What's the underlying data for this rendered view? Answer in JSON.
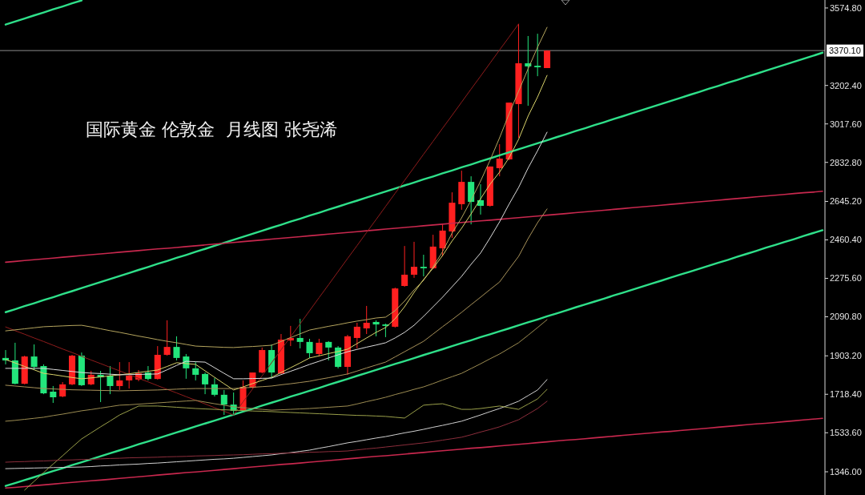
{
  "chart_data": {
    "type": "candlestick",
    "title": "国际黄金 伦敦金  月线图 张尧浠",
    "categories": [
      null,
      null,
      null,
      null,
      null,
      null,
      null,
      null,
      null,
      null,
      null,
      null,
      null,
      null,
      null,
      null,
      null,
      null,
      null,
      null,
      null,
      null,
      null,
      null,
      null,
      null,
      null,
      null,
      null,
      null,
      null,
      null,
      null,
      null,
      null,
      null,
      null,
      null,
      null,
      null,
      null,
      null,
      null,
      null,
      null,
      null,
      null,
      null,
      null,
      null,
      null,
      null,
      null,
      null,
      null,
      null,
      null,
      null,
      null,
      null,
      null,
      null,
      null,
      null,
      null,
      null,
      null,
      null,
      null,
      null,
      null,
      null,
      null,
      null,
      null,
      null,
      null,
      null,
      null,
      null,
      null,
      null,
      null,
      null,
      null,
      null,
      null
    ],
    "ohlc": [
      [
        1893,
        1931,
        1862,
        1881
      ],
      [
        1881,
        1966,
        1766,
        1769
      ],
      [
        1769,
        1904,
        1766,
        1900
      ],
      [
        1900,
        1958,
        1835,
        1850
      ],
      [
        1854,
        1862,
        1719,
        1723
      ],
      [
        1731,
        1758,
        1677,
        1704
      ],
      [
        1708,
        1777,
        1704,
        1766
      ],
      [
        1766,
        1908,
        1762,
        1904
      ],
      [
        1904,
        1919,
        1758,
        1762
      ],
      [
        1766,
        1831,
        1762,
        1812
      ],
      [
        1812,
        1831,
        1681,
        1800
      ],
      [
        1808,
        1854,
        1719,
        1758
      ],
      [
        1758,
        1873,
        1739,
        1785
      ],
      [
        1785,
        1873,
        1746,
        1808
      ],
      [
        1789,
        1835,
        1781,
        1819
      ],
      [
        1823,
        1854,
        1785,
        1792
      ],
      [
        1792,
        1950,
        1789,
        1908
      ],
      [
        1908,
        2074,
        1904,
        1946
      ],
      [
        1946,
        1997,
        1881,
        1893
      ],
      [
        1900,
        1912,
        1793,
        1843
      ],
      [
        1843,
        1873,
        1785,
        1812
      ],
      [
        1816,
        1823,
        1719,
        1766
      ],
      [
        1766,
        1796,
        1708,
        1716
      ],
      [
        1716,
        1739,
        1619,
        1669
      ],
      [
        1669,
        1727,
        1619,
        1639
      ],
      [
        1639,
        1785,
        1635,
        1754
      ],
      [
        1750,
        1823,
        1746,
        1823
      ],
      [
        1823,
        1943,
        1819,
        1931
      ],
      [
        1931,
        1958,
        1796,
        1823
      ],
      [
        1819,
        2008,
        1815,
        1981
      ],
      [
        1977,
        2047,
        1950,
        1989
      ],
      [
        1989,
        2081,
        1939,
        1970
      ],
      [
        1970,
        1985,
        1893,
        1916
      ],
      [
        1912,
        1985,
        1900,
        1966
      ],
      [
        1970,
        1974,
        1881,
        1943
      ],
      [
        1943,
        1950,
        1843,
        1850
      ],
      [
        1850,
        2004,
        1812,
        1997
      ],
      [
        1989,
        2062,
        1939,
        2043
      ],
      [
        2035,
        2143,
        2008,
        2062
      ],
      [
        2066,
        2074,
        1997,
        2054
      ],
      [
        2054,
        2058,
        1993,
        2047
      ],
      [
        2043,
        2231,
        2039,
        2227
      ],
      [
        2239,
        2431,
        2235,
        2293
      ],
      [
        2293,
        2451,
        2278,
        2331
      ],
      [
        2331,
        2389,
        2285,
        2324
      ],
      [
        2324,
        2485,
        2320,
        2428
      ],
      [
        2420,
        2535,
        2381,
        2505
      ],
      [
        2501,
        2689,
        2470,
        2639
      ],
      [
        2632,
        2793,
        2605,
        2739
      ],
      [
        2739,
        2766,
        2535,
        2643
      ],
      [
        2651,
        2728,
        2582,
        2624
      ],
      [
        2624,
        2813,
        2620,
        2813
      ],
      [
        2805,
        2920,
        2766,
        2851
      ],
      [
        2847,
        3120,
        2843,
        3120
      ],
      [
        3113,
        3498,
        2951,
        3309
      ],
      [
        3309,
        3440,
        3105,
        3294
      ],
      [
        3297,
        3451,
        3247,
        3290
      ],
      [
        3286,
        3371,
        3286,
        3370.1
      ],
      null,
      null,
      null,
      null,
      null,
      null,
      null,
      null,
      null,
      null,
      null,
      null,
      null,
      null,
      null,
      null,
      null,
      null,
      null,
      null,
      null,
      null,
      null,
      null,
      null,
      null,
      null,
      null,
      null
    ],
    "colors": [
      "#23e67c",
      "#23e67c",
      "#ff2020",
      "#23e67c",
      "#23e67c",
      "#23e67c",
      "#ff2020",
      "#ff2020",
      "#23e67c",
      "#ff2020",
      "#23e67c",
      "#23e67c",
      "#ff2020",
      "#ff2020",
      "#ff2020",
      "#23e67c",
      "#ff2020",
      "#ff2020",
      "#23e67c",
      "#23e67c",
      "#23e67c",
      "#23e67c",
      "#23e67c",
      "#23e67c",
      "#23e67c",
      "#ff2020",
      "#ff2020",
      "#ff2020",
      "#23e67c",
      "#ff2020",
      "#ff2020",
      "#23e67c",
      "#23e67c",
      "#ff2020",
      "#23e67c",
      "#23e67c",
      "#ff2020",
      "#ff2020",
      "#ff2020",
      "#23e67c",
      "#23e67c",
      "#ff2020",
      "#ff2020",
      "#ff2020",
      "#23e67c",
      "#ff2020",
      "#ff2020",
      "#ff2020",
      "#ff2020",
      "#23e67c",
      "#23e67c",
      "#ff2020",
      "#ff2020",
      "#ff2020",
      "#ff2020",
      "#23e67c",
      "#23e67c",
      "#ff2020",
      null,
      null,
      null,
      null,
      null,
      null,
      null,
      null,
      null,
      null,
      null,
      null,
      null,
      null,
      null,
      null,
      null,
      null,
      null,
      null,
      null,
      null,
      null,
      null,
      null,
      null,
      null,
      null,
      null
    ],
    "series": [
      {
        "type": "line",
        "color": "#2fe08a",
        "values": [
          3495,
          3510,
          3524,
          3539,
          3553,
          3568,
          3582,
          3597,
          3611,
          null,
          null,
          null,
          null,
          null,
          null,
          null,
          null,
          null,
          null,
          null,
          null,
          null,
          null,
          null,
          null,
          null,
          null,
          null,
          null,
          null,
          null,
          null,
          null,
          null,
          null,
          null,
          null,
          null,
          null,
          null,
          null,
          null,
          null,
          null,
          null,
          null,
          null,
          null,
          null,
          null,
          null,
          null,
          null,
          null,
          null,
          null,
          null,
          null,
          null,
          null,
          null,
          null,
          null,
          null,
          null,
          null,
          null,
          null,
          null,
          null,
          null,
          null,
          null,
          null,
          null,
          null,
          null,
          null,
          null,
          null,
          null,
          null,
          null,
          null,
          null,
          null,
          null
        ]
      },
      {
        "type": "line",
        "color": "#2fe08a",
        "values": [
          2113,
          2127,
          2142,
          2156,
          2171,
          2185,
          2200,
          2214,
          2229,
          2243,
          2258,
          2272,
          2287,
          2301,
          2316,
          2330,
          2345,
          2359,
          2374,
          2388,
          2403,
          2417,
          2432,
          2446,
          2461,
          2475,
          2490,
          2504,
          2519,
          2533,
          2548,
          2562,
          2577,
          2591,
          2606,
          2620,
          2635,
          2649,
          2664,
          2678,
          2693,
          2707,
          2722,
          2736,
          2751,
          2765,
          2780,
          2794,
          2809,
          2823,
          2838,
          2852,
          2867,
          2881,
          2896,
          2910,
          2925,
          2939,
          2954,
          2968,
          2983,
          2997,
          3012,
          3026,
          3041,
          3055,
          3070,
          3084,
          3099,
          3113,
          3128,
          3142,
          3157,
          3171,
          3186,
          3200,
          3215,
          3229,
          3244,
          3258,
          3273,
          3287,
          3302,
          3316,
          3331,
          3345,
          3360
        ]
      },
      {
        "type": "line",
        "color": "#2fe08a",
        "values": [
          1278,
          1292,
          1306,
          1320,
          1335,
          1349,
          1363,
          1378,
          1392,
          1406,
          1421,
          1435,
          1449,
          1463,
          1478,
          1492,
          1506,
          1521,
          1535,
          1549,
          1564,
          1578,
          1592,
          1606,
          1621,
          1635,
          1649,
          1664,
          1678,
          1692,
          1707,
          1721,
          1735,
          1749,
          1764,
          1778,
          1792,
          1807,
          1821,
          1835,
          1850,
          1864,
          1878,
          1892,
          1907,
          1921,
          1935,
          1950,
          1964,
          1978,
          1993,
          2007,
          2021,
          2035,
          2050,
          2064,
          2078,
          2093,
          2107,
          2121,
          2136,
          2150,
          2164,
          2178,
          2193,
          2207,
          2221,
          2236,
          2250,
          2264,
          2279,
          2293,
          2307,
          2321,
          2336,
          2350,
          2364,
          2379,
          2393,
          2407,
          2422,
          2436,
          2450,
          2464,
          2479,
          2493,
          2507
        ]
      },
      {
        "type": "line",
        "color": "#c8284e",
        "values": [
          2353,
          2357,
          2361,
          2365,
          2369,
          2373,
          2377,
          2381,
          2385,
          2389,
          2393,
          2397,
          2401,
          2405,
          2409,
          2413,
          2417,
          2420,
          2424,
          2428,
          2432,
          2436,
          2440,
          2444,
          2448,
          2452,
          2456,
          2460,
          2464,
          2468,
          2472,
          2476,
          2480,
          2484,
          2488,
          2492,
          2496,
          2500,
          2504,
          2508,
          2512,
          2516,
          2520,
          2524,
          2528,
          2532,
          2536,
          2540,
          2544,
          2548,
          2552,
          2555,
          2559,
          2563,
          2567,
          2571,
          2575,
          2579,
          2583,
          2587,
          2591,
          2595,
          2599,
          2603,
          2607,
          2611,
          2615,
          2619,
          2623,
          2627,
          2631,
          2635,
          2639,
          2643,
          2647,
          2651,
          2655,
          2659,
          2663,
          2667,
          2671,
          2675,
          2679,
          2683,
          2687,
          2690,
          2694
        ]
      },
      {
        "type": "line",
        "color": "#c8284e",
        "values": [
          1268,
          1271,
          1275,
          1279,
          1283,
          1287,
          1291,
          1295,
          1299,
          1303,
          1306,
          1310,
          1314,
          1318,
          1322,
          1326,
          1330,
          1334,
          1338,
          1342,
          1345,
          1349,
          1353,
          1357,
          1361,
          1365,
          1369,
          1373,
          1377,
          1381,
          1384,
          1388,
          1392,
          1396,
          1400,
          1404,
          1408,
          1412,
          1416,
          1420,
          1423,
          1427,
          1431,
          1435,
          1439,
          1443,
          1447,
          1451,
          1455,
          1459,
          1462,
          1466,
          1470,
          1474,
          1478,
          1482,
          1486,
          1490,
          1494,
          1498,
          1501,
          1505,
          1509,
          1513,
          1517,
          1521,
          1525,
          1529,
          1533,
          1537,
          1540,
          1544,
          1548,
          1552,
          1556,
          1560,
          1564,
          1568,
          1572,
          1576,
          1579,
          1583,
          1587,
          1591,
          1595,
          1599,
          1603
        ]
      },
      {
        "type": "line",
        "color": "#8e1c1c",
        "values": [
          2042,
          2024,
          2007,
          1989,
          1972,
          1954,
          1936,
          1919,
          1901,
          1883,
          1866,
          1848,
          1831,
          1813,
          1795,
          1778,
          1760,
          1742,
          1725,
          1707,
          1690,
          1672,
          1654,
          1637,
          1619,
          1682,
          1744,
          1807,
          1870,
          1932,
          1995,
          2057,
          2120,
          2183,
          2245,
          2308,
          2371,
          2433,
          2496,
          2558,
          2621,
          2684,
          2746,
          2809,
          2872,
          2934,
          2997,
          3059,
          3122,
          3185,
          3247,
          3310,
          3373,
          3435,
          3498,
          null,
          null,
          null,
          null,
          null,
          null,
          null,
          null,
          null,
          null,
          null,
          null,
          null,
          null,
          null,
          null,
          null,
          null,
          null,
          null,
          null,
          null,
          null,
          null,
          null,
          null,
          null,
          null,
          null,
          null,
          null,
          null
        ]
      },
      {
        "type": "line",
        "color": "#b5a55e",
        "values": [
          2023,
          2028,
          2033,
          2038,
          2043,
          2045,
          2047,
          2049,
          2050,
          2042,
          2033,
          2024,
          2016,
          2007,
          1998,
          1990,
          1981,
          1973,
          1966,
          1958,
          1950,
          1948,
          1946,
          1944,
          1943,
          1946,
          1948,
          1951,
          1954,
          1972,
          1991,
          2009,
          2027,
          2036,
          2045,
          2053,
          2062,
          2070,
          2077,
          2085,
          2089,
          2120,
          2166,
          2220,
          2266,
          2331,
          2404,
          2493,
          2566,
          2651,
          2743,
          2843,
          2951,
          3066,
          3174,
          3282,
          3386,
          3482,
          null,
          null,
          null,
          null,
          null,
          null,
          null,
          null,
          null,
          null,
          null,
          null,
          null,
          null,
          null,
          null,
          null,
          null,
          null,
          null,
          null,
          null,
          null,
          null,
          null,
          null,
          null,
          null,
          null
        ]
      },
      {
        "type": "line",
        "color": "#d9d36b",
        "values": [
          1885,
          1869,
          1852,
          1836,
          1819,
          1813,
          1806,
          1799,
          1793,
          1797,
          1802,
          1807,
          1812,
          1817,
          1823,
          1829,
          1835,
          1852,
          1870,
          1866,
          1862,
          1831,
          1800,
          1769,
          1739,
          1754,
          1770,
          1785,
          1800,
          1823,
          1846,
          1869,
          1893,
          1903,
          1914,
          1924,
          1935,
          1962,
          1989,
          2016,
          2039,
          2081,
          2139,
          2208,
          2270,
          2324,
          2385,
          2455,
          2516,
          2585,
          2658,
          2728,
          2786,
          2855,
          2943,
          3055,
          3147,
          3251,
          null,
          null,
          null,
          null,
          null,
          null,
          null,
          null,
          null,
          null,
          null,
          null,
          null,
          null,
          null,
          null,
          null,
          null,
          null,
          null,
          null,
          null,
          null,
          null,
          null,
          null,
          null,
          null,
          null
        ]
      },
      {
        "type": "line",
        "color": "#dcdcdc",
        "values": [
          1843,
          1843,
          1843,
          1843,
          1843,
          1838,
          1833,
          1828,
          1823,
          1820,
          1818,
          1815,
          1812,
          1813,
          1814,
          1815,
          1816,
          1836,
          1857,
          1877,
          1875,
          1873,
          1846,
          1819,
          1793,
          1793,
          1794,
          1795,
          1796,
          1813,
          1829,
          1845,
          1862,
          1877,
          1893,
          1908,
          1923,
          1934,
          1945,
          1955,
          1966,
          1989,
          2016,
          2050,
          2093,
          2139,
          2185,
          2235,
          2285,
          2343,
          2397,
          2470,
          2547,
          2632,
          2712,
          2805,
          2889,
          2978,
          null,
          null,
          null,
          null,
          null,
          null,
          null,
          null,
          null,
          null,
          null,
          null,
          null,
          null,
          null,
          null,
          null,
          null,
          null,
          null,
          null,
          null,
          null,
          null,
          null,
          null,
          null,
          null,
          null
        ]
      },
      {
        "type": "line",
        "color": "#a8925a",
        "values": [
          1762,
          1758,
          1754,
          1750,
          1746,
          1744,
          1742,
          1740,
          1739,
          1738,
          1737,
          1736,
          1735,
          1736,
          1737,
          1738,
          1739,
          1741,
          1743,
          1745,
          1746,
          1746,
          1746,
          1746,
          1746,
          1749,
          1752,
          1755,
          1758,
          1764,
          1769,
          1775,
          1781,
          1790,
          1798,
          1807,
          1816,
          1830,
          1845,
          1859,
          1873,
          1898,
          1923,
          1948,
          1973,
          2008,
          2043,
          2077,
          2112,
          2149,
          2185,
          2222,
          2258,
          2320,
          2381,
          2466,
          2543,
          2609,
          null,
          null,
          null,
          null,
          null,
          null,
          null,
          null,
          null,
          null,
          null,
          null,
          null,
          null,
          null,
          null,
          null,
          null,
          null,
          null,
          null,
          null,
          null,
          null,
          null,
          null,
          null,
          null,
          null
        ]
      },
      {
        "type": "line",
        "color": "#9c8c52",
        "values": [
          1589,
          1593,
          1598,
          1603,
          1608,
          1616,
          1623,
          1631,
          1639,
          1645,
          1652,
          1659,
          1666,
          1668,
          1671,
          1674,
          1677,
          1680,
          1683,
          1686,
          1689,
          1681,
          1673,
          1666,
          1658,
          1654,
          1650,
          1646,
          1642,
          1644,
          1646,
          1648,
          1650,
          1653,
          1656,
          1659,
          1662,
          1672,
          1683,
          1693,
          1704,
          1717,
          1729,
          1742,
          1754,
          1770,
          1787,
          1803,
          1819,
          1842,
          1865,
          1889,
          1912,
          1939,
          1966,
          2002,
          2039,
          2077,
          null,
          null,
          null,
          null,
          null,
          null,
          null,
          null,
          null,
          null,
          null,
          null,
          null,
          null,
          null,
          null,
          null,
          null,
          null,
          null,
          null,
          null,
          null,
          null,
          null,
          null,
          null,
          null,
          null
        ]
      },
      {
        "type": "line",
        "color": "#d0d0d0",
        "values": [
          1361,
          1362,
          1363,
          1364,
          1365,
          1366,
          1367,
          1368,
          1369,
          1371,
          1374,
          1376,
          1379,
          1381,
          1383,
          1386,
          1388,
          1391,
          1394,
          1397,
          1400,
          1403,
          1406,
          1408,
          1411,
          1415,
          1419,
          1423,
          1427,
          1433,
          1438,
          1444,
          1450,
          1459,
          1467,
          1476,
          1485,
          1492,
          1500,
          1508,
          1515,
          1524,
          1533,
          1541,
          1550,
          1560,
          1569,
          1579,
          1589,
          1604,
          1619,
          1635,
          1650,
          1667,
          1685,
          1712,
          1739,
          1789,
          null,
          null,
          null,
          null,
          null,
          null,
          null,
          null,
          null,
          null,
          null,
          null,
          null,
          null,
          null,
          null,
          null,
          null,
          null,
          null,
          null,
          null,
          null,
          null,
          null,
          null,
          null,
          null,
          null
        ]
      },
      {
        "type": "line",
        "color": "#9aa04a",
        "values": [
          null,
          null,
          1258,
          1300,
          1342,
          1383,
          1423,
          1464,
          1504,
          1533,
          1562,
          1590,
          1619,
          1640,
          1662,
          1662,
          1662,
          1659,
          1656,
          1653,
          1650,
          1648,
          1646,
          1644,
          1642,
          1640,
          1638,
          1637,
          1635,
          1633,
          1631,
          1629,
          1627,
          1625,
          1623,
          1621,
          1619,
          1617,
          1616,
          1614,
          1612,
          1608,
          1604,
          1635,
          1666,
          1670,
          1673,
          1660,
          1646,
          1646,
          1650,
          1656,
          1662,
          1654,
          1646,
          1671,
          1696,
          1742,
          null,
          null,
          null,
          null,
          null,
          null,
          null,
          null,
          null,
          null,
          null,
          null,
          null,
          null,
          null,
          null,
          null,
          null,
          null,
          null,
          null,
          null,
          null,
          null,
          null,
          null,
          null,
          null,
          null
        ]
      },
      {
        "type": "line",
        "color": "#8c2e3c",
        "values": [
          1392,
          1394,
          1395,
          1397,
          1398,
          1400,
          1402,
          1403,
          1405,
          1406,
          1408,
          1410,
          1411,
          1413,
          1414,
          1415,
          1416,
          1418,
          1419,
          1420,
          1422,
          1423,
          1424,
          1426,
          1427,
          1428,
          1430,
          1432,
          1433,
          1435,
          1436,
          1438,
          1440,
          1441,
          1443,
          1444,
          1446,
          1451,
          1456,
          1460,
          1465,
          1470,
          1475,
          1480,
          1485,
          1491,
          1498,
          1505,
          1512,
          1524,
          1537,
          1549,
          1562,
          1579,
          1596,
          1623,
          1650,
          1685,
          null,
          null,
          null,
          null,
          null,
          null,
          null,
          null,
          null,
          null,
          null,
          null,
          null,
          null,
          null,
          null,
          null,
          null,
          null,
          null,
          null,
          null,
          null,
          null,
          null,
          null,
          null,
          null,
          null
        ]
      }
    ],
    "ylim": [
      1234.4,
      3613.1
    ],
    "yticks": [
      {
        "value": 1346,
        "label": "1346.00"
      },
      {
        "value": 1533.6,
        "label": "1533.60"
      },
      {
        "value": 1718.4,
        "label": "1718.40"
      },
      {
        "value": 1903.2,
        "label": "1903.20"
      },
      {
        "value": 2090.8,
        "label": "2090.80"
      },
      {
        "value": 2275.6,
        "label": "2275.60"
      },
      {
        "value": 2460.4,
        "label": "2460.40"
      },
      {
        "value": 2645.2,
        "label": "2645.20"
      },
      {
        "value": 2832.8,
        "label": "2832.80"
      },
      {
        "value": 3017.6,
        "label": "3017.60"
      },
      {
        "value": 3202.4,
        "label": "3202.40"
      },
      {
        "value": 3574.8,
        "label": "3574.80"
      }
    ],
    "ref_lines": [
      {
        "axis": "y",
        "value": 3370.1,
        "label": "3370.10",
        "color": "#8c8c8c"
      }
    ]
  }
}
